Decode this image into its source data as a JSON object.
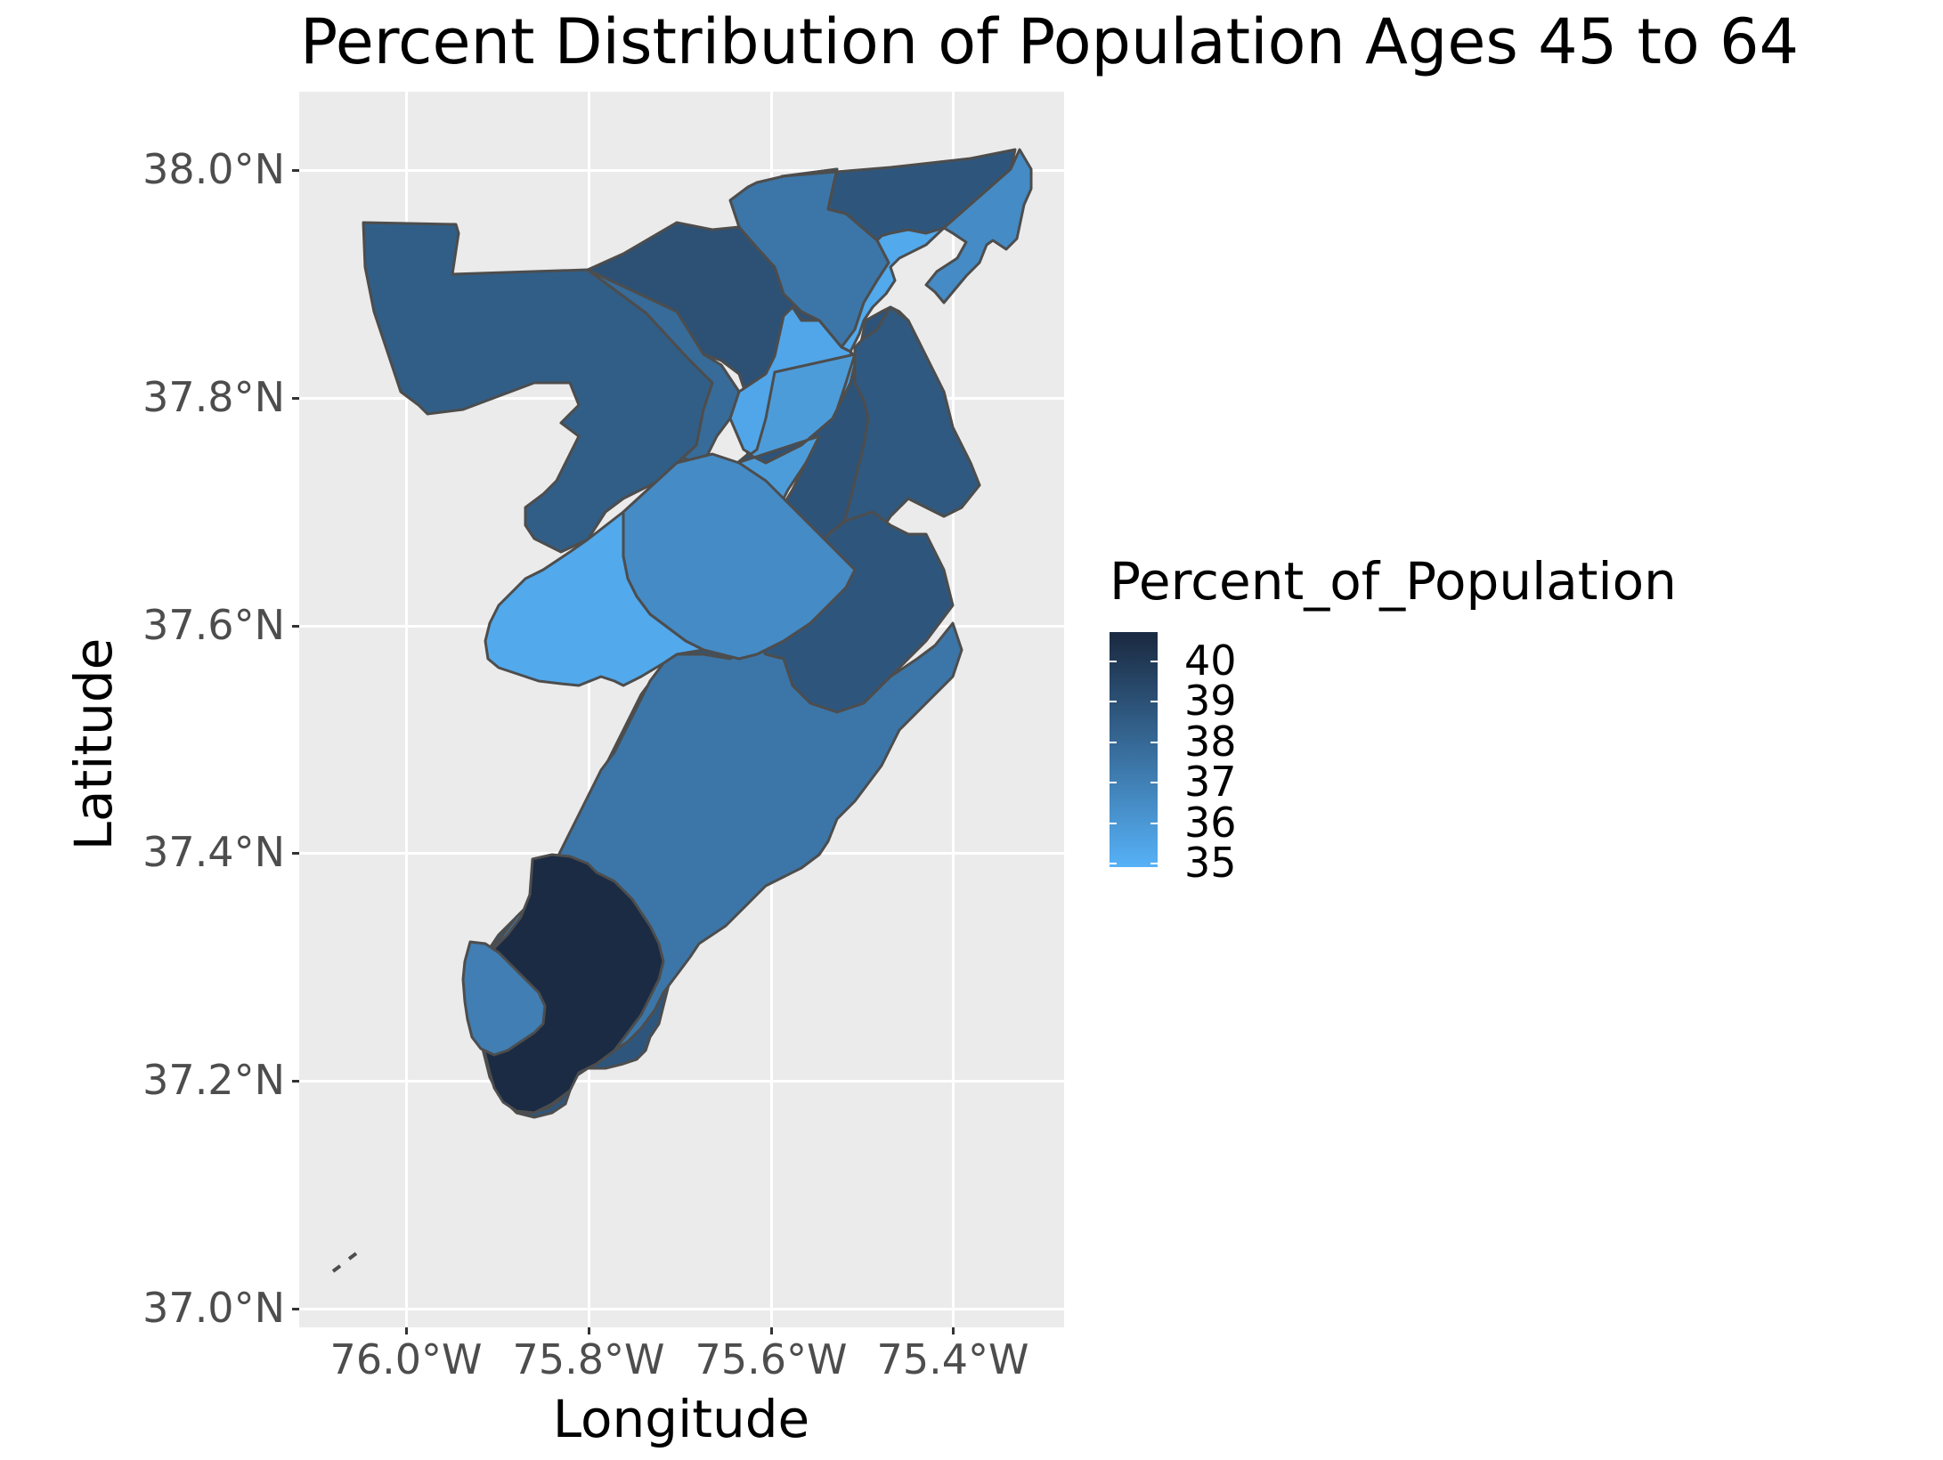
{
  "title": "Percent Distribution of Population Ages 45 to 64",
  "axes": {
    "x_label": "Longitude",
    "y_label": "Latitude",
    "x_ticks": [
      "76.0°W",
      "75.8°W",
      "75.6°W",
      "75.4°W"
    ],
    "y_ticks": [
      "38.0°N",
      "37.8°N",
      "37.6°N",
      "37.4°N",
      "37.2°N",
      "37.0°N"
    ]
  },
  "legend": {
    "title": "Percent_of_Population",
    "labels": [
      "40",
      "39",
      "38",
      "37",
      "36",
      "35"
    ],
    "color_low": "#56b1f7",
    "color_high": "#1b2b43"
  },
  "colors": {
    "panel_background": "#ebebeb",
    "gridline": "#ffffff",
    "region_border": "#4d4d4d"
  },
  "chart_data": {
    "type": "choropleth",
    "x_range_lon": [
      -76.12,
      -75.27
    ],
    "y_range_lat": [
      36.99,
      38.07
    ],
    "value_name": "Percent_of_Population",
    "value_range": [
      35,
      40
    ],
    "regions_values": [
      38.1,
      38.6,
      37.6,
      37.2,
      38.4,
      36.4,
      35.3,
      38.3,
      35.4,
      35.8,
      38.5,
      38.3,
      38.4,
      37.2,
      40.0,
      36.9,
      36.4,
      35.3
    ]
  }
}
